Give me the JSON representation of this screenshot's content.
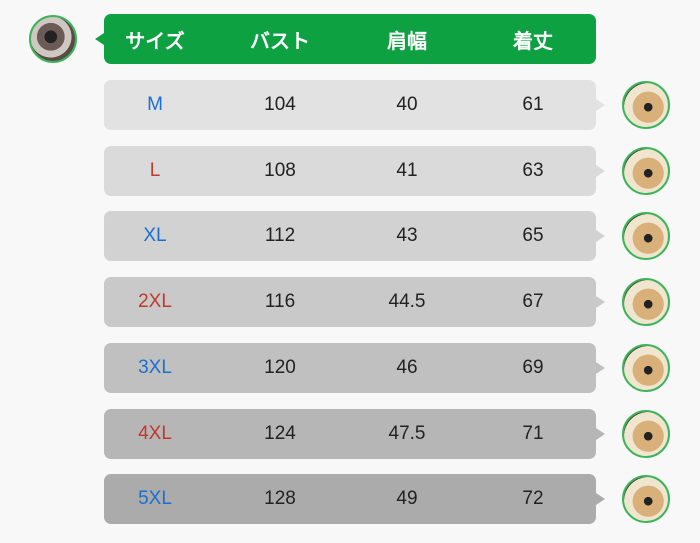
{
  "header": {
    "columns": [
      "サイズ",
      "バスト",
      "肩幅",
      "着丈"
    ],
    "color": "#0ea142"
  },
  "rows": [
    {
      "size": "M",
      "bust": "104",
      "shoulder": "40",
      "length": "61",
      "size_color": "#1a6fd0",
      "bg": "#e2e2e2"
    },
    {
      "size": "L",
      "bust": "108",
      "shoulder": "41",
      "length": "63",
      "size_color": "#c0392b",
      "bg": "#dadada"
    },
    {
      "size": "XL",
      "bust": "112",
      "shoulder": "43",
      "length": "65",
      "size_color": "#1a6fd0",
      "bg": "#d2d2d2"
    },
    {
      "size": "2XL",
      "bust": "116",
      "shoulder": "44.5",
      "length": "67",
      "size_color": "#c0392b",
      "bg": "#c9c9c9"
    },
    {
      "size": "3XL",
      "bust": "120",
      "shoulder": "46",
      "length": "69",
      "size_color": "#1a6fd0",
      "bg": "#c0c0c1"
    },
    {
      "size": "4XL",
      "bust": "124",
      "shoulder": "47.5",
      "length": "71",
      "size_color": "#c0392b",
      "bg": "#b6b6b7"
    },
    {
      "size": "5XL",
      "bust": "128",
      "shoulder": "49",
      "length": "72",
      "size_color": "#1a6fd0",
      "bg": "#ababac"
    }
  ]
}
